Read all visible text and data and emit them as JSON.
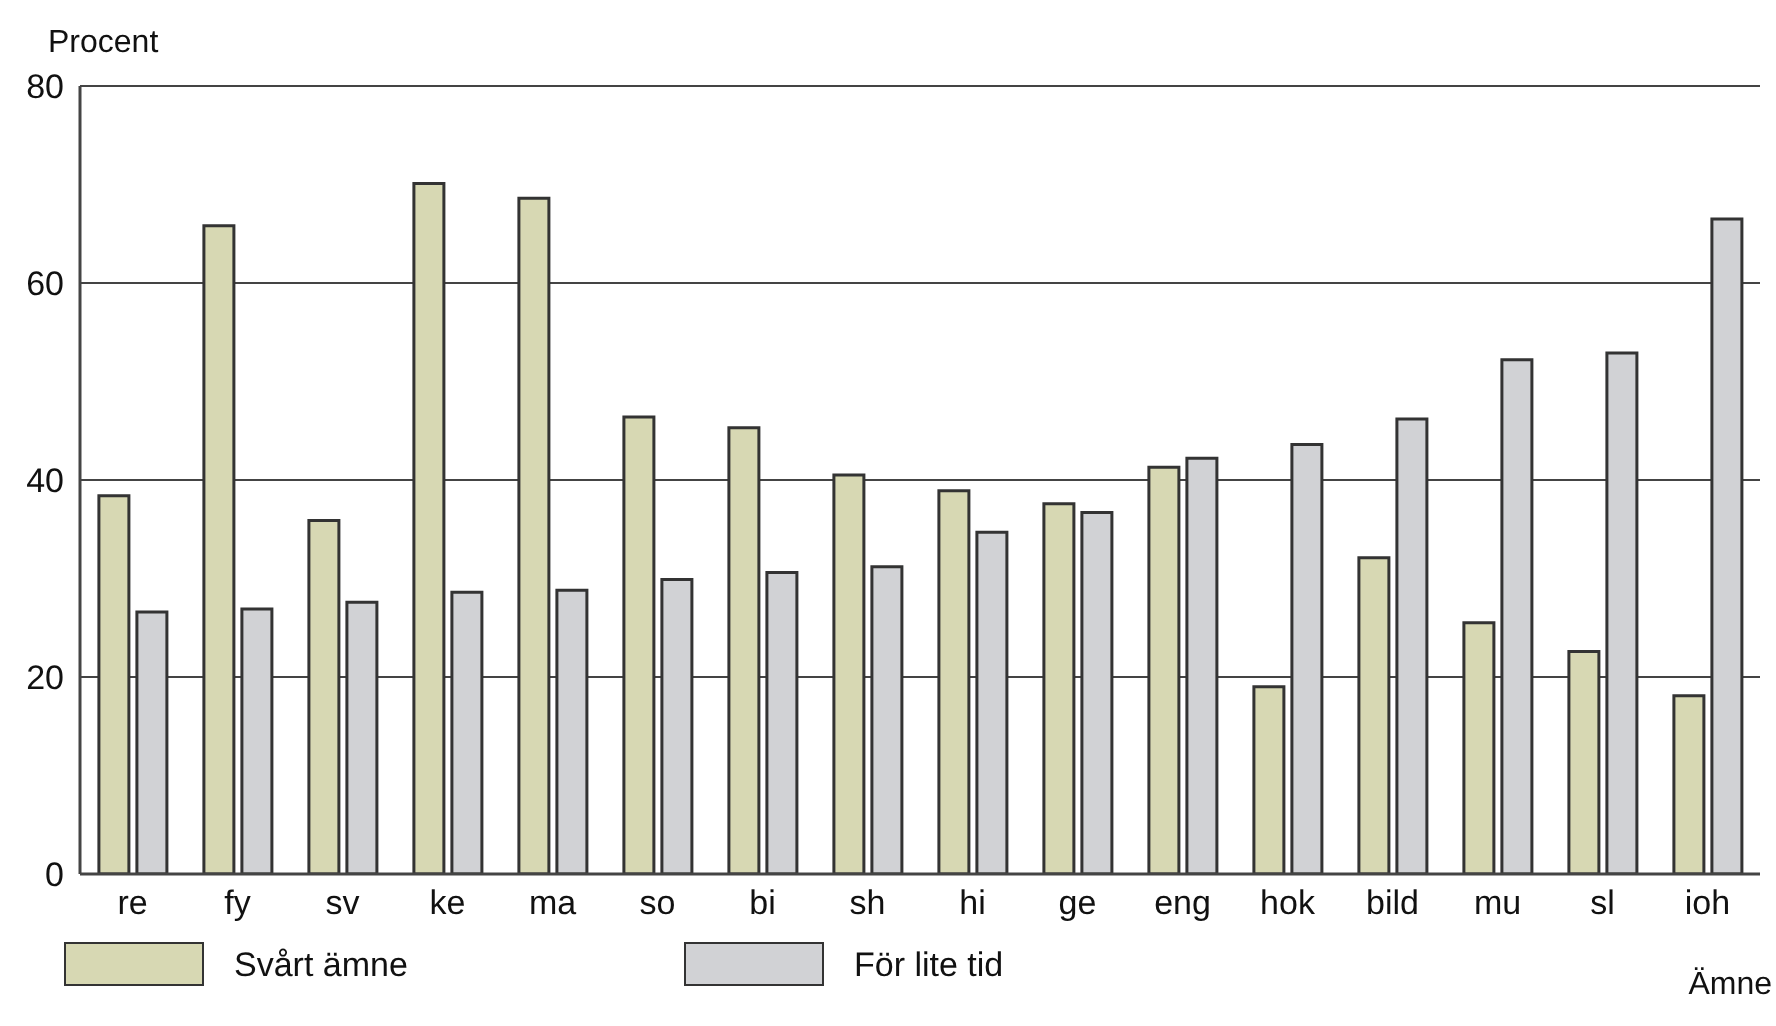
{
  "chart_data": {
    "type": "bar",
    "xlabel": "Ämne",
    "ylabel": "Procent",
    "categories": [
      "re",
      "fy",
      "sv",
      "ke",
      "ma",
      "so",
      "bi",
      "sh",
      "hi",
      "ge",
      "eng",
      "hok",
      "bild",
      "mu",
      "sl",
      "ioh"
    ],
    "series": [
      {
        "name": "Svårt ämne",
        "color": "#d7d8b3",
        "values": [
          38.4,
          65.8,
          35.9,
          70.1,
          68.6,
          46.4,
          45.3,
          40.5,
          38.9,
          37.6,
          41.3,
          19.0,
          32.1,
          25.5,
          22.6,
          18.1
        ]
      },
      {
        "name": "För lite tid",
        "color": "#d1d2d5",
        "values": [
          26.6,
          26.9,
          27.6,
          28.6,
          28.8,
          29.9,
          30.6,
          31.2,
          34.7,
          36.7,
          42.2,
          43.6,
          46.2,
          52.2,
          52.9,
          66.5
        ]
      }
    ],
    "ylim": [
      0,
      80
    ],
    "yticks": [
      0,
      20,
      40,
      60,
      80
    ],
    "grid": "y",
    "legend": "bottom"
  }
}
